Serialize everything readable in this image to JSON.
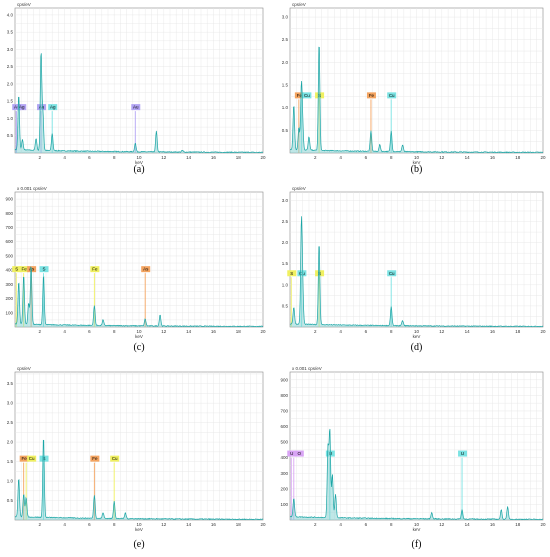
{
  "chart_data": [
    {
      "type": "line",
      "caption": "(a)",
      "ylabel": "cps/eV",
      "xlabel": "keV",
      "xlim": [
        0,
        20
      ],
      "ylim": [
        0,
        4.2
      ],
      "xticks": [
        2,
        4,
        6,
        8,
        10,
        12,
        14,
        16,
        18,
        20
      ],
      "yticks": [
        0.5,
        1.0,
        1.5,
        2.0,
        2.5,
        3.0,
        3.5,
        4.0
      ],
      "ytick_labels": [
        "0.5",
        "1.0",
        "1.5",
        "2.0",
        "2.5",
        "3.0",
        "3.5",
        "4.0"
      ],
      "labels_y": 1.3,
      "peaks": [
        [
          0.3,
          1.6
        ],
        [
          0.6,
          0.3
        ],
        [
          1.7,
          0.35
        ],
        [
          2.1,
          2.85
        ],
        [
          2.25,
          1.1
        ],
        [
          3.0,
          0.5
        ],
        [
          9.7,
          0.25
        ],
        [
          11.4,
          0.6
        ],
        [
          13.5,
          0.05
        ]
      ],
      "element_labels": [
        {
          "text": "Au",
          "x": 0.1,
          "color": "#b2a4f4"
        },
        {
          "text": "Ag",
          "x": 0.1,
          "color": "#b2a4f4"
        },
        {
          "text": "Au",
          "x": 2.1,
          "color": "#b2a4f4"
        },
        {
          "text": "Ag",
          "x": 3.0,
          "color": "#7be3e3"
        },
        {
          "text": "Au",
          "x": 9.7,
          "color": "#b2a4f4"
        }
      ]
    },
    {
      "type": "line",
      "caption": "(b)",
      "ylabel": "cps/eV",
      "xlabel": "keV",
      "xlim": [
        0,
        20
      ],
      "ylim": [
        0,
        3.2
      ],
      "xticks": [
        2,
        4,
        6,
        8,
        10,
        12,
        14,
        16,
        18,
        20
      ],
      "yticks": [
        0.5,
        1.0,
        1.5,
        2.0,
        2.5,
        3.0
      ],
      "ytick_labels": [
        "0.5",
        "1.0",
        "1.5",
        "2.0",
        "2.5",
        "3.0"
      ],
      "labels_y": 1.25,
      "peaks": [
        [
          0.3,
          1.0
        ],
        [
          0.7,
          0.5
        ],
        [
          0.9,
          1.4
        ],
        [
          1.0,
          0.5
        ],
        [
          1.5,
          0.3
        ],
        [
          2.3,
          2.4
        ],
        [
          6.4,
          0.45
        ],
        [
          7.1,
          0.15
        ],
        [
          8.0,
          0.45
        ],
        [
          8.9,
          0.15
        ]
      ],
      "element_labels": [
        {
          "text": "Fe",
          "x": 0.7,
          "color": "#f4a460"
        },
        {
          "text": "Cu",
          "x": 0.9,
          "color": "#7be3e3"
        },
        {
          "text": "S",
          "x": 2.3,
          "color": "#f0f060"
        },
        {
          "text": "Fe",
          "x": 6.4,
          "color": "#f4a460"
        },
        {
          "text": "Cu",
          "x": 8.0,
          "color": "#7be3e3"
        }
      ]
    },
    {
      "type": "line",
      "caption": "(c)",
      "ylabel": "x 0.001 cps/eV",
      "xlabel": "keV",
      "xlim": [
        0,
        20
      ],
      "ylim": [
        0,
        950
      ],
      "xticks": [
        2,
        4,
        6,
        8,
        10,
        12,
        14,
        16,
        18,
        20
      ],
      "yticks": [
        100,
        200,
        300,
        400,
        500,
        600,
        700,
        800,
        900
      ],
      "ytick_labels": [
        "100",
        "200",
        "300",
        "400",
        "500",
        "600",
        "700",
        "800",
        "900"
      ],
      "labels_y": 400,
      "peaks": [
        [
          0.3,
          300
        ],
        [
          0.7,
          350
        ],
        [
          1.3,
          420
        ],
        [
          1.1,
          150
        ],
        [
          2.3,
          350
        ],
        [
          6.4,
          140
        ],
        [
          7.1,
          40
        ],
        [
          10.5,
          50
        ],
        [
          11.7,
          80
        ]
      ],
      "element_labels": [
        {
          "text": "S",
          "x": 0.1,
          "color": "#f0f060"
        },
        {
          "text": "Fe",
          "x": 0.7,
          "color": "#f0f060"
        },
        {
          "text": "As",
          "x": 1.3,
          "color": "#f4a460"
        },
        {
          "text": "S",
          "x": 2.3,
          "color": "#7be3e3"
        },
        {
          "text": "Fe",
          "x": 6.4,
          "color": "#f0f060"
        },
        {
          "text": "As",
          "x": 10.5,
          "color": "#f4a460"
        }
      ]
    },
    {
      "type": "line",
      "caption": "(d)",
      "ylabel": "cps/eV",
      "xlabel": "keV",
      "xlim": [
        0,
        20
      ],
      "ylim": [
        0,
        3.2
      ],
      "xticks": [
        2,
        4,
        6,
        8,
        10,
        12,
        14,
        16,
        18,
        20
      ],
      "yticks": [
        0.5,
        1.0,
        1.5,
        2.0,
        2.5,
        3.0
      ],
      "ytick_labels": [
        "0.5",
        "1.0",
        "1.5",
        "2.0",
        "2.5",
        "3.0"
      ],
      "labels_y": 1.25,
      "peaks": [
        [
          0.3,
          0.4
        ],
        [
          0.9,
          2.35
        ],
        [
          1.0,
          0.8
        ],
        [
          2.3,
          1.95
        ],
        [
          8.0,
          0.45
        ],
        [
          8.9,
          0.12
        ]
      ],
      "element_labels": [
        {
          "text": "S",
          "x": 0.1,
          "color": "#f0f060"
        },
        {
          "text": "Cu",
          "x": 0.9,
          "color": "#7be3e3"
        },
        {
          "text": "S",
          "x": 2.3,
          "color": "#f0f060"
        },
        {
          "text": "Cu",
          "x": 8.0,
          "color": "#7be3e3"
        }
      ]
    },
    {
      "type": "line",
      "caption": "(e)",
      "ylabel": "cps/eV",
      "xlabel": "keV",
      "xlim": [
        0,
        20
      ],
      "ylim": [
        0,
        3.8
      ],
      "xticks": [
        2,
        4,
        6,
        8,
        10,
        12,
        14,
        16,
        18,
        20
      ],
      "yticks": [
        0.5,
        1.0,
        1.5,
        2.0,
        2.5,
        3.0,
        3.5
      ],
      "ytick_labels": [
        "0.5",
        "1.0",
        "1.5",
        "2.0",
        "2.5",
        "3.0",
        "3.5"
      ],
      "labels_y": 1.55,
      "peaks": [
        [
          0.3,
          1.0
        ],
        [
          0.7,
          0.6
        ],
        [
          0.9,
          0.5
        ],
        [
          2.3,
          2.1
        ],
        [
          6.4,
          0.6
        ],
        [
          7.1,
          0.15
        ],
        [
          8.0,
          0.45
        ],
        [
          8.9,
          0.15
        ]
      ],
      "element_labels": [
        {
          "text": "Fe",
          "x": 0.7,
          "color": "#f4a460"
        },
        {
          "text": "Cu",
          "x": 0.9,
          "color": "#f0f060"
        },
        {
          "text": "S",
          "x": 2.3,
          "color": "#7be3e3"
        },
        {
          "text": "Fe",
          "x": 6.4,
          "color": "#f4a460"
        },
        {
          "text": "Cu",
          "x": 8.0,
          "color": "#f0f060"
        }
      ]
    },
    {
      "type": "line",
      "caption": "(f)",
      "ylabel": "x 0.001 cps/eV",
      "xlabel": "keV",
      "xlim": [
        0,
        20
      ],
      "ylim": [
        0,
        950
      ],
      "xticks": [
        2,
        4,
        6,
        8,
        10,
        12,
        14,
        16,
        18,
        20
      ],
      "yticks": [
        100,
        200,
        300,
        400,
        500,
        600,
        700,
        800,
        900
      ],
      "ytick_labels": [
        "100",
        "200",
        "300",
        "400",
        "500",
        "600",
        "700",
        "800",
        "900"
      ],
      "labels_y": 420,
      "peaks": [
        [
          0.3,
          120
        ],
        [
          3.0,
          450
        ],
        [
          3.15,
          560
        ],
        [
          3.35,
          280
        ],
        [
          3.6,
          150
        ],
        [
          11.2,
          40
        ],
        [
          13.6,
          60
        ],
        [
          16.7,
          60
        ],
        [
          17.2,
          80
        ]
      ],
      "element_labels": [
        {
          "text": "U",
          "x": 0.1,
          "color": "#d8a4f4"
        },
        {
          "text": "O",
          "x": 0.3,
          "color": "#d8a4f4"
        },
        {
          "text": "U",
          "x": 3.15,
          "color": "#7be3e3"
        },
        {
          "text": "U",
          "x": 13.6,
          "color": "#7be3e3"
        }
      ]
    }
  ],
  "colors": {
    "grid": "#e4e4e4",
    "axis": "#888888",
    "spectrum": "#1aa5a5",
    "fill": "#7fd0d0"
  }
}
